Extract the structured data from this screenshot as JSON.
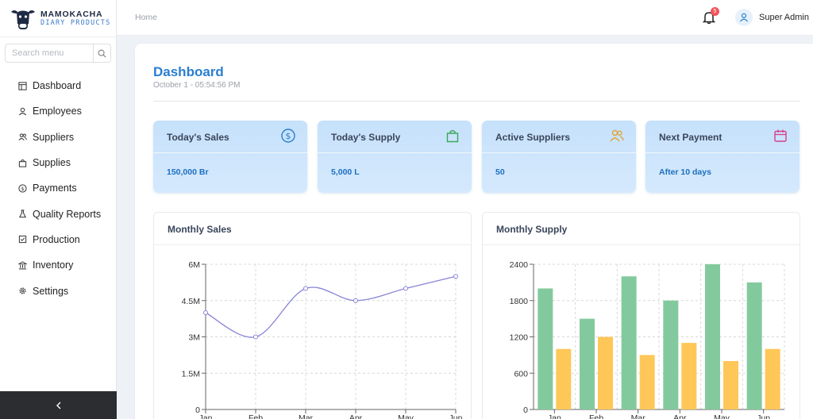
{
  "brand": {
    "title": "MAMOKACHA",
    "subtitle": "DIARY PRODUCTS"
  },
  "search": {
    "placeholder": "Search menu"
  },
  "menu": [
    {
      "label": "Dashboard",
      "icon": "dashboard-icon"
    },
    {
      "label": "Employees",
      "icon": "user-icon"
    },
    {
      "label": "Suppliers",
      "icon": "users-icon"
    },
    {
      "label": "Supplies",
      "icon": "bag-icon"
    },
    {
      "label": "Payments",
      "icon": "dollar-circle-icon"
    },
    {
      "label": "Quality Reports",
      "icon": "flask-icon"
    },
    {
      "label": "Production",
      "icon": "checkbox-icon"
    },
    {
      "label": "Inventory",
      "icon": "bank-icon"
    },
    {
      "label": "Settings",
      "icon": "gear-icon"
    }
  ],
  "header": {
    "breadcrumb": "Home",
    "notification_count": "5",
    "username": "Super Admin"
  },
  "page": {
    "title": "Dashboard",
    "date": "October 1 - 05:54:56 PM"
  },
  "stats": [
    {
      "label": "Today's Sales",
      "value": "150,000 Br",
      "icon": "dollar-circle-icon",
      "color": "#2a7ed0"
    },
    {
      "label": "Today's Supply",
      "value": "5,000 L",
      "icon": "shopping-bag-icon",
      "color": "#34a853"
    },
    {
      "label": "Active Suppliers",
      "value": "50",
      "icon": "users-icon",
      "color": "#e3a233"
    },
    {
      "label": "Next Payment",
      "value": "After 10 days",
      "icon": "calendar-icon",
      "color": "#d6408a"
    }
  ],
  "panels": {
    "sales_title": "Monthly Sales",
    "supply_title": "Monthly Supply"
  },
  "chart_data": [
    {
      "type": "line",
      "categories": [
        "Jan",
        "Feb",
        "Mar",
        "Apr",
        "May",
        "Jun"
      ],
      "yticks": [
        "0",
        "1.5M",
        "3M",
        "4.5M",
        "6M"
      ],
      "ylim": [
        0,
        6000000
      ],
      "series": [
        {
          "values": [
            4000000,
            3000000,
            5000000,
            4500000,
            5000000,
            5500000
          ],
          "color": "#8884d8"
        }
      ],
      "grid": true
    },
    {
      "type": "bar",
      "categories": [
        "Jan",
        "Feb",
        "Mar",
        "Apr",
        "May",
        "Jun"
      ],
      "yticks": [
        "0",
        "600",
        "1200",
        "1800",
        "2400"
      ],
      "ylim": [
        0,
        2400
      ],
      "series": [
        {
          "values": [
            2000,
            1500,
            2200,
            1800,
            2400,
            2100
          ],
          "color": "#82ca9d"
        },
        {
          "values": [
            1000,
            1200,
            900,
            1100,
            800,
            1000
          ],
          "color": "#ffc658"
        }
      ],
      "grid": true
    }
  ]
}
